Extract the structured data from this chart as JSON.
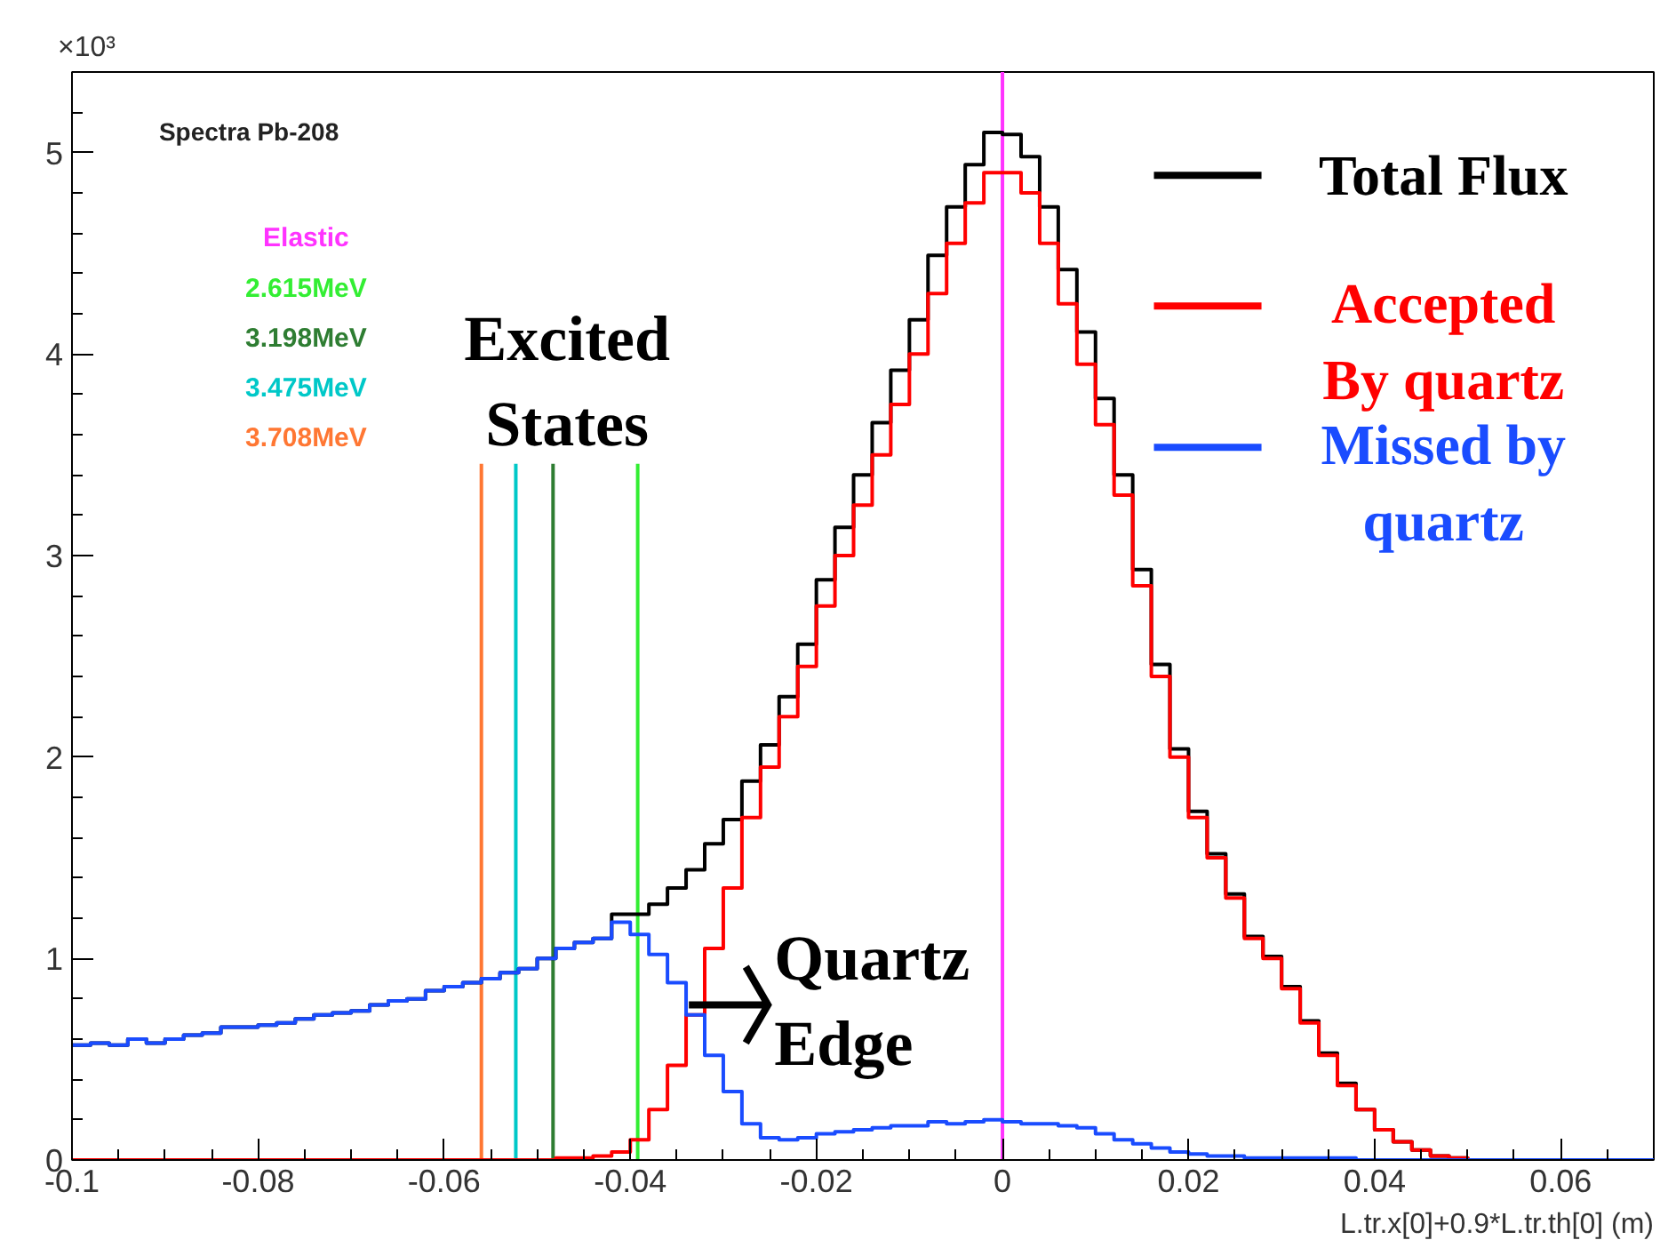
{
  "chart_data": {
    "type": "histogram",
    "xlabel": "L.tr.x[0]+0.9*L.tr.th[0] (m)",
    "bins": [
      -0.1,
      -0.098,
      -0.096,
      -0.094,
      -0.092,
      -0.09,
      -0.088,
      -0.086,
      -0.084,
      -0.082,
      -0.08,
      -0.078,
      -0.076,
      -0.074,
      -0.072,
      -0.07,
      -0.068,
      -0.066,
      -0.064,
      -0.062,
      -0.06,
      -0.058,
      -0.056,
      -0.054,
      -0.052,
      -0.05,
      -0.048,
      -0.046,
      -0.044,
      -0.042,
      -0.04,
      -0.038,
      -0.036,
      -0.034,
      -0.032,
      -0.03,
      -0.028,
      -0.026,
      -0.024,
      -0.022,
      -0.02,
      -0.018,
      -0.016,
      -0.014,
      -0.012,
      -0.01,
      -0.008,
      -0.006,
      -0.004,
      -0.002,
      0,
      0.002,
      0.004,
      0.006,
      0.008,
      0.01,
      0.012,
      0.014,
      0.016,
      0.018,
      0.02,
      0.022,
      0.024,
      0.026,
      0.028,
      0.03,
      0.032,
      0.034,
      0.036,
      0.038,
      0.04,
      0.042,
      0.044,
      0.046,
      0.048,
      0.05,
      0.052,
      0.054,
      0.056,
      0.058,
      0.06,
      0.062,
      0.064,
      0.066,
      0.068,
      0.07
    ],
    "series": [
      {
        "name": "Total Flux",
        "color": "#000000",
        "values": [
          0.57,
          0.58,
          0.57,
          0.6,
          0.58,
          0.6,
          0.62,
          0.63,
          0.66,
          0.66,
          0.67,
          0.68,
          0.7,
          0.72,
          0.73,
          0.74,
          0.77,
          0.79,
          0.8,
          0.84,
          0.86,
          0.88,
          0.9,
          0.93,
          0.95,
          1.0,
          1.05,
          1.08,
          1.1,
          1.22,
          1.22,
          1.27,
          1.35,
          1.44,
          1.57,
          1.69,
          1.88,
          2.06,
          2.3,
          2.56,
          2.88,
          3.14,
          3.4,
          3.66,
          3.92,
          4.17,
          4.49,
          4.73,
          4.94,
          5.1,
          5.09,
          4.98,
          4.73,
          4.42,
          4.11,
          3.78,
          3.4,
          2.93,
          2.46,
          2.04,
          1.73,
          1.52,
          1.32,
          1.11,
          1.01,
          0.86,
          0.69,
          0.53,
          0.38,
          0.25,
          0.15,
          0.09,
          0.05,
          0.02,
          0.01,
          0,
          0,
          0,
          0,
          0,
          0,
          0,
          0,
          0,
          0
        ]
      },
      {
        "name": "Accepted By quartz",
        "color": "#ff0000",
        "values": [
          0,
          0,
          0,
          0,
          0,
          0,
          0,
          0,
          0,
          0,
          0,
          0,
          0,
          0,
          0,
          0,
          0,
          0,
          0,
          0,
          0,
          0,
          0,
          0,
          0,
          0,
          0.01,
          0.01,
          0.02,
          0.04,
          0.1,
          0.25,
          0.47,
          0.72,
          1.05,
          1.35,
          1.7,
          1.95,
          2.2,
          2.45,
          2.75,
          3.0,
          3.25,
          3.5,
          3.75,
          4.0,
          4.3,
          4.55,
          4.75,
          4.9,
          4.9,
          4.8,
          4.55,
          4.25,
          3.95,
          3.65,
          3.3,
          2.85,
          2.4,
          2.0,
          1.7,
          1.5,
          1.3,
          1.1,
          1.0,
          0.85,
          0.68,
          0.52,
          0.37,
          0.25,
          0.15,
          0.09,
          0.05,
          0.02,
          0.01,
          0,
          0,
          0,
          0,
          0,
          0,
          0,
          0,
          0,
          0
        ]
      },
      {
        "name": "Missed by quartz",
        "color": "#1a4cff",
        "values": [
          0.57,
          0.58,
          0.57,
          0.6,
          0.58,
          0.6,
          0.62,
          0.63,
          0.66,
          0.66,
          0.67,
          0.68,
          0.7,
          0.72,
          0.73,
          0.74,
          0.77,
          0.79,
          0.8,
          0.84,
          0.86,
          0.88,
          0.9,
          0.93,
          0.95,
          1.0,
          1.05,
          1.08,
          1.1,
          1.18,
          1.12,
          1.02,
          0.88,
          0.72,
          0.52,
          0.34,
          0.18,
          0.11,
          0.1,
          0.11,
          0.13,
          0.14,
          0.15,
          0.16,
          0.17,
          0.17,
          0.19,
          0.18,
          0.19,
          0.2,
          0.19,
          0.18,
          0.18,
          0.17,
          0.16,
          0.13,
          0.1,
          0.08,
          0.06,
          0.04,
          0.03,
          0.02,
          0.02,
          0.01,
          0.01,
          0.01,
          0.01,
          0.01,
          0.01,
          0,
          0,
          0,
          0,
          0,
          0,
          0,
          0,
          0,
          0,
          0,
          0,
          0,
          0,
          0,
          0
        ]
      }
    ],
    "xlim": [
      -0.1,
      0.07
    ],
    "ylim": [
      0,
      5.4
    ],
    "xticks": [
      -0.1,
      -0.08,
      -0.06,
      -0.04,
      -0.02,
      0,
      0.02,
      0.04,
      0.06
    ],
    "yticks": [
      0,
      1,
      2,
      3,
      4,
      5
    ],
    "ref_lines": [
      {
        "axis": "x",
        "value": 0,
        "label": "Elastic",
        "color": "#ff33ff"
      },
      {
        "axis": "x",
        "value": -0.0392,
        "label": "2.615MeV",
        "color": "#33ee33"
      },
      {
        "axis": "x",
        "value": -0.0483,
        "label": "3.198MeV",
        "color": "#2e7d32"
      },
      {
        "axis": "x",
        "value": -0.0523,
        "label": "3.475MeV",
        "color": "#00c8c8"
      },
      {
        "axis": "x",
        "value": -0.056,
        "label": "3.708MeV",
        "color": "#ff7733"
      }
    ],
    "annotations": [
      "×10³",
      "Spectra Pb-208",
      "Excited States",
      "Quartz Edge"
    ],
    "legend": "top right",
    "grid": false
  }
}
